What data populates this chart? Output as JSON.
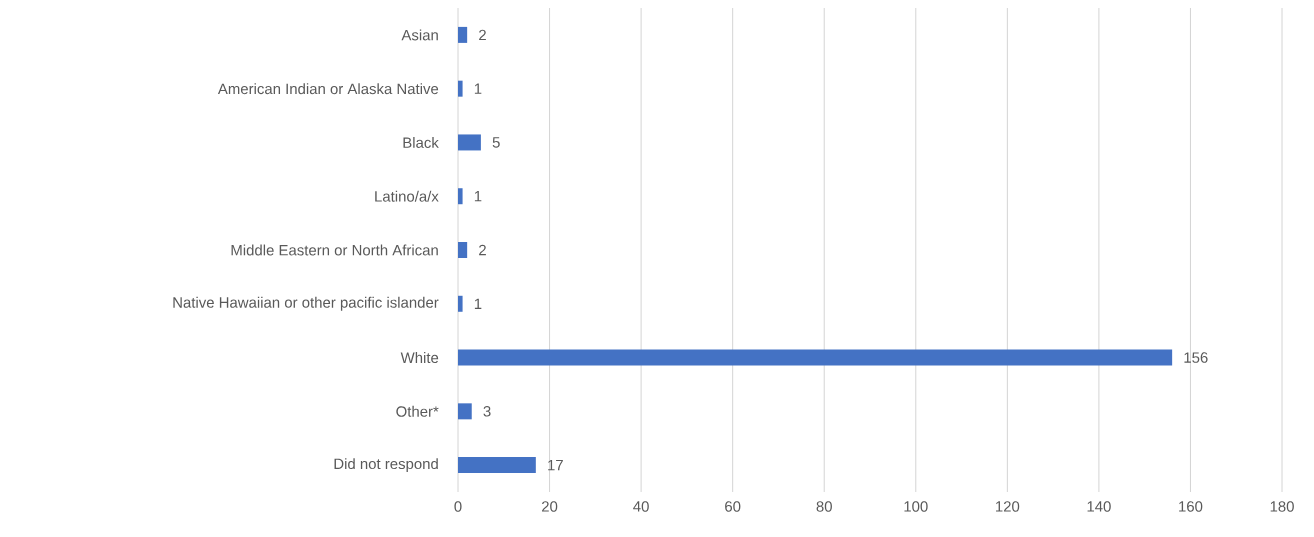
{
  "chart_data": {
    "type": "bar",
    "orientation": "horizontal",
    "categories": [
      "Asian",
      "American Indian or Alaska Native",
      "Black",
      "Latino/a/x",
      "Middle Eastern or North African",
      "Native Hawaiian or other pacific islander",
      "White",
      "Other*",
      "Did not respond"
    ],
    "values": [
      2,
      1,
      5,
      1,
      2,
      1,
      156,
      3,
      17
    ],
    "color": "#4472c4",
    "data_labels": true,
    "xlim": [
      0,
      180
    ],
    "xticks": [
      0,
      20,
      40,
      60,
      80,
      100,
      120,
      140,
      160,
      180
    ],
    "grid": "x"
  }
}
